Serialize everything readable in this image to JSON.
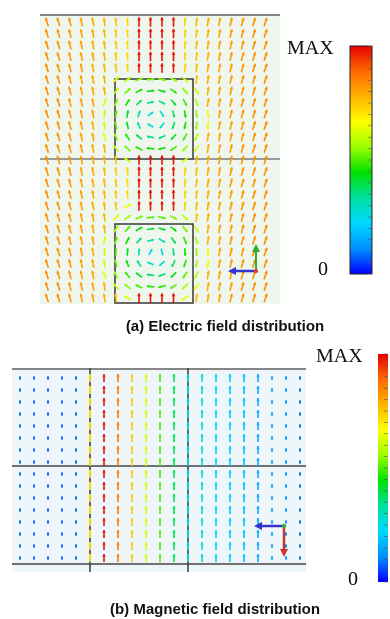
{
  "panel_a": {
    "caption": "(a) Electric field distribution",
    "colorbar": {
      "max_label": "MAX",
      "min_label": "0"
    }
  },
  "panel_b": {
    "caption": "(b) Magnetic field distribution",
    "colorbar": {
      "max_label": "MAX",
      "min_label": "0"
    }
  },
  "colors": {
    "colorbar_stops": [
      "#e60000",
      "#ff6a00",
      "#ffb400",
      "#ffff00",
      "#9aff00",
      "#00e000",
      "#00e0a0",
      "#00d8ff",
      "#0090ff",
      "#0000ff"
    ],
    "plot_background": "#eef6ee",
    "plot_b_background": "#eef6fa",
    "gridline": "#444444"
  },
  "icons": {
    "axis_triad_a": "axis-triad-icon",
    "axis_triad_b": "axis-triad-icon"
  }
}
